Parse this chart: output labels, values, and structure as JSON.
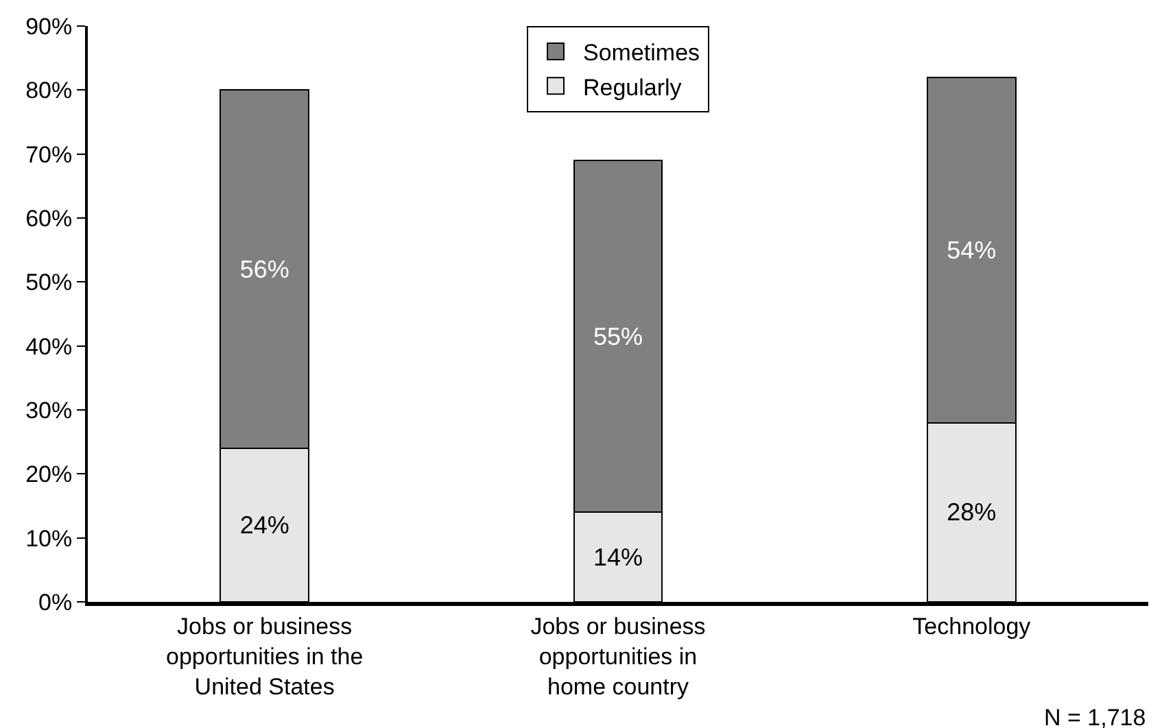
{
  "chart_data": {
    "type": "bar",
    "stacked": true,
    "categories": [
      "Jobs or business\nopportunities in the\nUnited States",
      "Jobs or business\nopportunities in\nhome country",
      "Technology"
    ],
    "series": [
      {
        "name": "Regularly",
        "color": "#e6e6e6",
        "values": [
          24,
          14,
          28
        ],
        "value_labels": [
          "24%",
          "14%",
          "28%"
        ]
      },
      {
        "name": "Sometimes",
        "color": "#808080",
        "values": [
          56,
          55,
          54
        ],
        "value_labels": [
          "56%",
          "55%",
          "54%"
        ]
      }
    ],
    "ylim": [
      0,
      90
    ],
    "yticks": [
      {
        "value": 0,
        "label": "0%"
      },
      {
        "value": 10,
        "label": "10%"
      },
      {
        "value": 20,
        "label": "20%"
      },
      {
        "value": 30,
        "label": "30%"
      },
      {
        "value": 40,
        "label": "40%"
      },
      {
        "value": 50,
        "label": "50%"
      },
      {
        "value": 60,
        "label": "60%"
      },
      {
        "value": 70,
        "label": "70%"
      },
      {
        "value": 80,
        "label": "80%"
      },
      {
        "value": 90,
        "label": "90%"
      }
    ],
    "grid": false,
    "legend": "top",
    "annotations": [
      "N = 1,718"
    ]
  }
}
